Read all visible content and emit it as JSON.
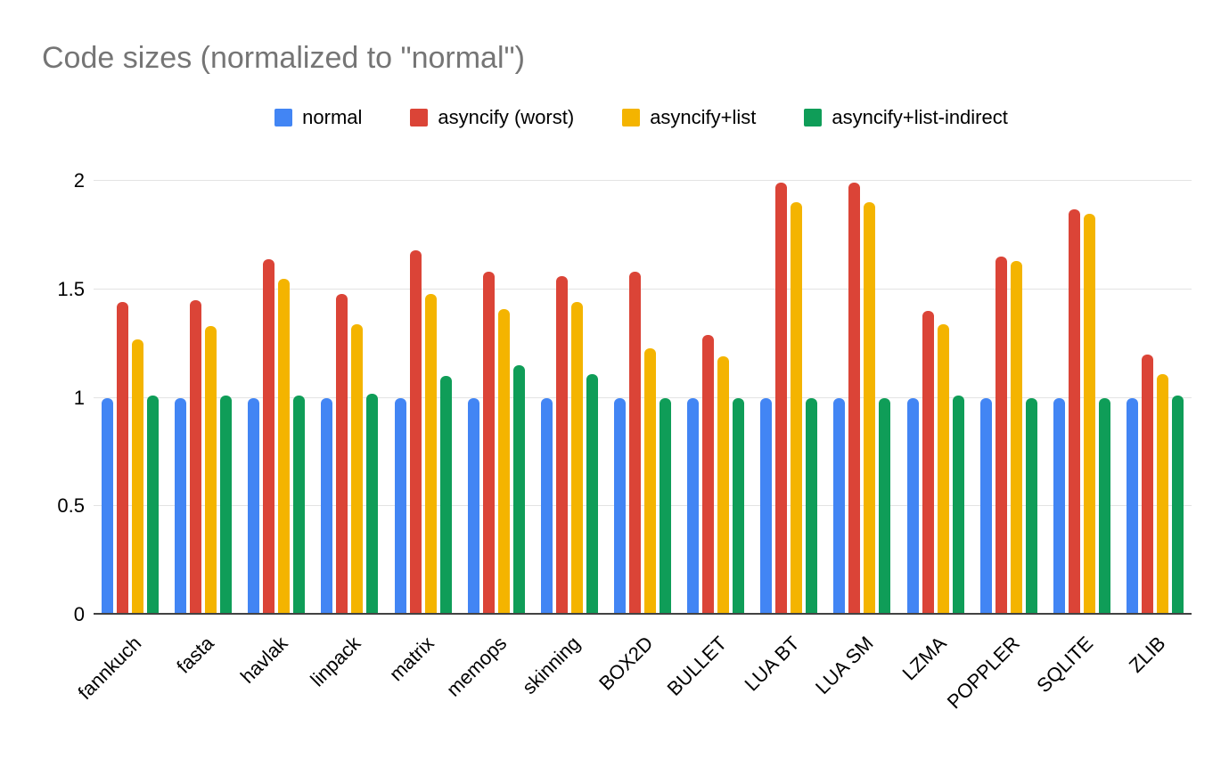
{
  "chart_data": {
    "type": "bar",
    "title": "Code sizes (normalized to \"normal\")",
    "xlabel": "",
    "ylabel": "",
    "ylim": [
      0,
      2
    ],
    "yticks": [
      0,
      0.5,
      1,
      1.5,
      2
    ],
    "grid": true,
    "legend_position": "top",
    "categories": [
      "fannkuch",
      "fasta",
      "havlak",
      "linpack",
      "matrix",
      "memops",
      "skinning",
      "BOX2D",
      "BULLET",
      "LUA BT",
      "LUA SM",
      "LZMA",
      "POPPLER",
      "SQLITE",
      "ZLIB"
    ],
    "series": [
      {
        "name": "normal",
        "color": "#4285F4",
        "values": [
          1.0,
          1.0,
          1.0,
          1.0,
          1.0,
          1.0,
          1.0,
          1.0,
          1.0,
          1.0,
          1.0,
          1.0,
          1.0,
          1.0,
          1.0
        ]
      },
      {
        "name": "asyncify (worst)",
        "color": "#DB4437",
        "values": [
          1.44,
          1.45,
          1.64,
          1.48,
          1.68,
          1.58,
          1.56,
          1.58,
          1.29,
          1.99,
          1.99,
          1.4,
          1.65,
          1.87,
          1.2
        ]
      },
      {
        "name": "asyncify+list",
        "color": "#F4B400",
        "values": [
          1.27,
          1.33,
          1.55,
          1.34,
          1.48,
          1.41,
          1.44,
          1.23,
          1.19,
          1.9,
          1.9,
          1.34,
          1.63,
          1.85,
          1.11
        ]
      },
      {
        "name": "asyncify+list-indirect",
        "color": "#0F9D58",
        "values": [
          1.01,
          1.01,
          1.01,
          1.02,
          1.1,
          1.15,
          1.11,
          1.0,
          1.0,
          1.0,
          1.0,
          1.01,
          1.0,
          1.0,
          1.01
        ]
      }
    ]
  }
}
